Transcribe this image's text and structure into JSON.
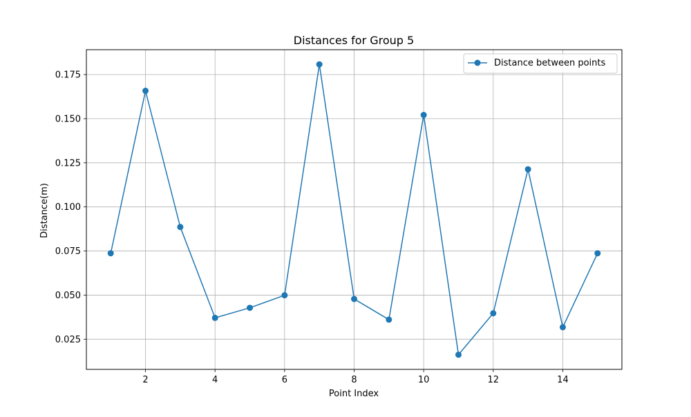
{
  "chart_data": {
    "type": "line",
    "title": "Distances for Group 5",
    "xlabel": "Point Index",
    "ylabel": "Distance(m)",
    "x": [
      1,
      2,
      3,
      4,
      5,
      6,
      7,
      8,
      9,
      10,
      11,
      12,
      13,
      14,
      15
    ],
    "series": [
      {
        "name": "Distance between points",
        "values": [
          0.0737,
          0.1658,
          0.0886,
          0.0371,
          0.0428,
          0.0499,
          0.1808,
          0.0478,
          0.0361,
          0.1521,
          0.0162,
          0.0397,
          0.1213,
          0.0318,
          0.0737
        ],
        "color": "#1f77b4",
        "marker": "circle"
      }
    ],
    "xlim": [
      0.3,
      15.7
    ],
    "ylim": [
      0.0079,
      0.1891
    ],
    "xticks": [
      2,
      4,
      6,
      8,
      10,
      12,
      14
    ],
    "xtick_labels": [
      "2",
      "4",
      "6",
      "8",
      "10",
      "12",
      "14"
    ],
    "yticks": [
      0.025,
      0.05,
      0.075,
      0.1,
      0.125,
      0.15,
      0.175
    ],
    "ytick_labels": [
      "0.025",
      "0.050",
      "0.075",
      "0.100",
      "0.125",
      "0.150",
      "0.175"
    ],
    "grid": true,
    "legend_position": "upper right"
  }
}
